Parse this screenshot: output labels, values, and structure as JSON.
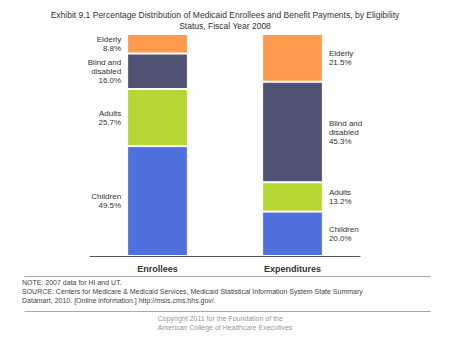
{
  "chart_data": {
    "type": "bar",
    "title": "Exhibit 9.1 Percentage Distribution of Medicaid Enrollees and Benefit Payments, by Eligibility\nStatus, Fiscal Year 2008",
    "categories": [
      "Enrollees",
      "Expenditures"
    ],
    "series": [
      {
        "name": "Children",
        "values": [
          49.5,
          20.0
        ],
        "value_labels": [
          "Children\n49.5%",
          "Children\n20.0%"
        ]
      },
      {
        "name": "Adults",
        "values": [
          25.7,
          13.2
        ],
        "value_labels": [
          "Adults\n25.7%",
          "Adults\n13.2%"
        ]
      },
      {
        "name": "Blind and\ndisabled",
        "values": [
          16.0,
          45.3
        ],
        "value_labels": [
          "Blind and\ndisabled\n16.0%",
          "Blind and\ndisabled\n45.3%"
        ]
      },
      {
        "name": "Elderly",
        "values": [
          8.8,
          21.5
        ],
        "value_labels": [
          "Elderly\n8.8%",
          "Elderly\n21.5%"
        ]
      }
    ],
    "stacked": true,
    "data_labels": true,
    "ylim": [
      0,
      100
    ],
    "tick_labels": "x",
    "grid": false,
    "annotations": [
      "NOTE: 2007 data for HI and UT.\nSOURCE: Centers for Medicare & Medicaid Services, Medicaid Statistical Information System State Summary\nDatamart, 2010. [Online information.] http://msis.cms.hhs.gov/.",
      "Copyright 2011 for the Foundation of the\nAmerican College of Healthcare Executives"
    ]
  }
}
